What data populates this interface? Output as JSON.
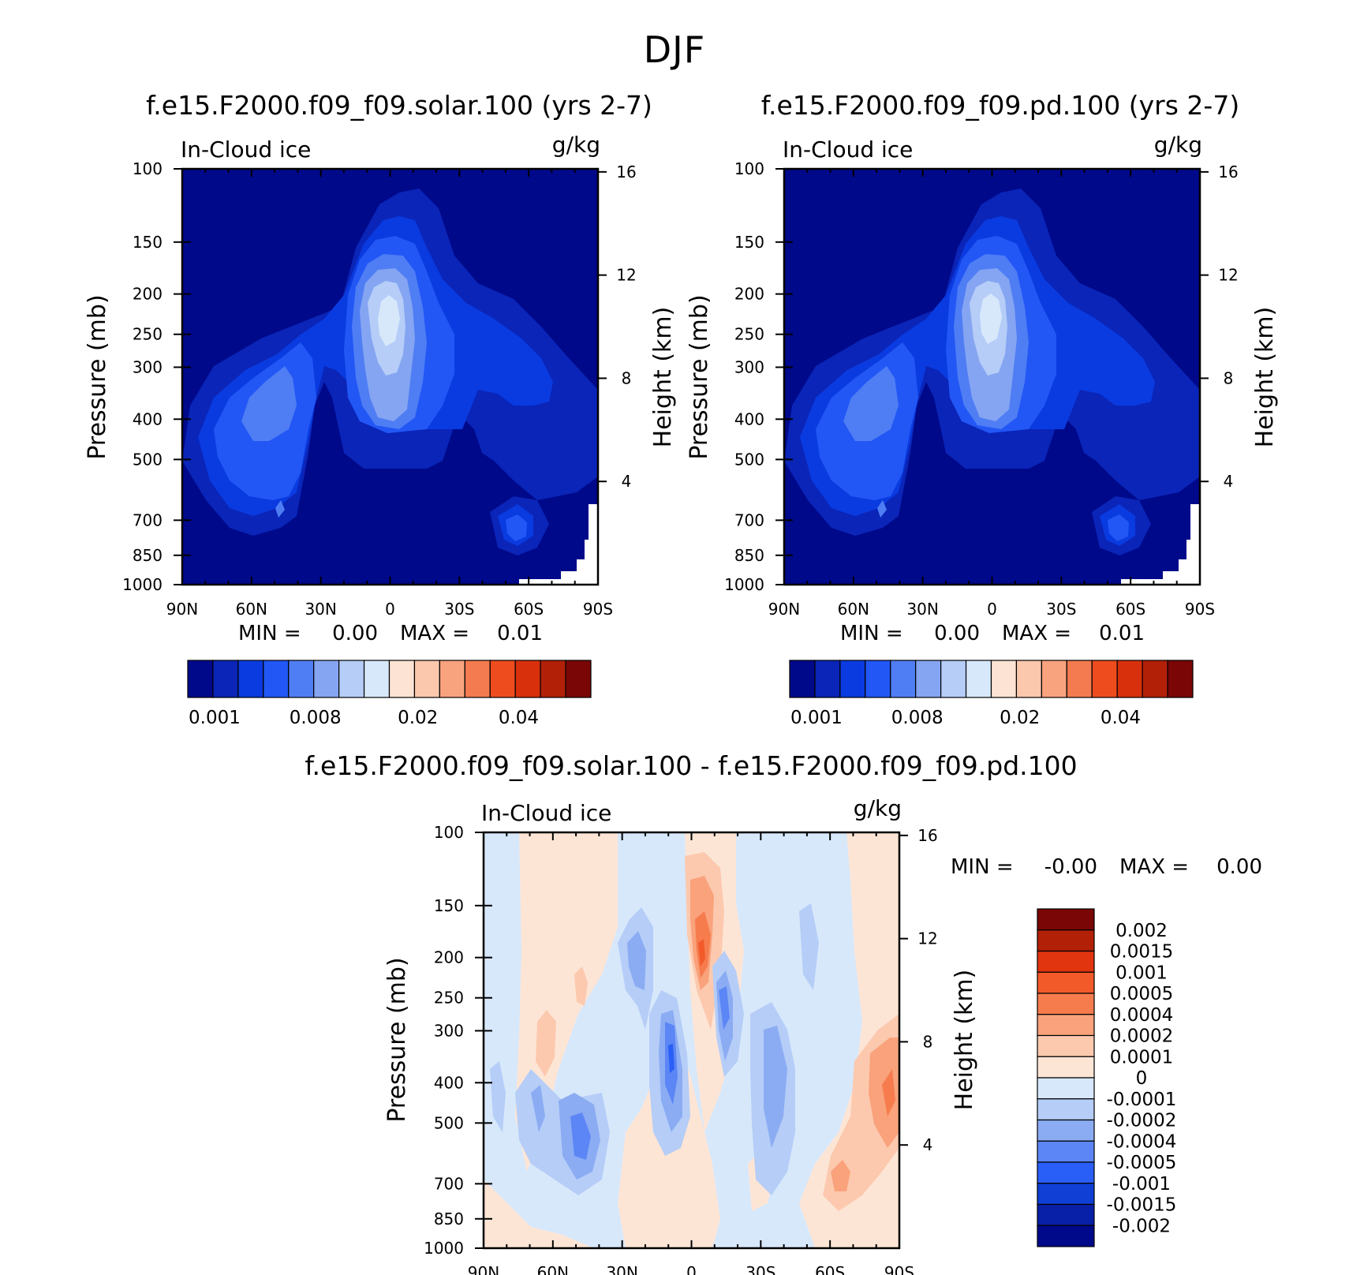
{
  "page": {
    "title": "DJF"
  },
  "axes_common": {
    "ylabel": "Pressure (mb)",
    "y2label": "Height (km)",
    "pressure_ticks": [
      100,
      150,
      200,
      250,
      300,
      400,
      500,
      700,
      850,
      1000
    ],
    "height_ticks": [
      16,
      12,
      8,
      4
    ],
    "lat_tick_labels": [
      "90N",
      "60N",
      "30N",
      "0",
      "30S",
      "60S",
      "90S"
    ],
    "lat_tick_values": [
      90,
      60,
      30,
      0,
      -30,
      -60,
      -90
    ]
  },
  "panels": [
    {
      "id": "solar",
      "title": "f.e15.F2000.f09_f09.solar.100 (yrs 2-7)",
      "left_label": "In-Cloud ice",
      "units": "g/kg",
      "min_label": "MIN =",
      "min_value": "0.00",
      "max_label": "MAX =",
      "max_value": "0.01",
      "colorbar_labels": [
        "0.001",
        "0.008",
        "0.02",
        "0.04"
      ]
    },
    {
      "id": "pd",
      "title": "f.e15.F2000.f09_f09.pd.100 (yrs 2-7)",
      "left_label": "In-Cloud ice",
      "units": "g/kg",
      "min_label": "MIN =",
      "min_value": "0.00",
      "max_label": "MAX =",
      "max_value": "0.01",
      "colorbar_labels": [
        "0.001",
        "0.008",
        "0.02",
        "0.04"
      ]
    },
    {
      "id": "diff",
      "title": "f.e15.F2000.f09_f09.solar.100 - f.e15.F2000.f09_f09.pd.100",
      "left_label": "In-Cloud ice",
      "units": "g/kg",
      "min_label": "MIN =",
      "min_value": "-0.00",
      "max_label": "MAX =",
      "max_value": "0.00",
      "colorbar_labels": [
        "0.002",
        "0.0015",
        "0.001",
        "0.0005",
        "0.0004",
        "0.0002",
        "0.0001",
        "0",
        "-0.0001",
        "-0.0002",
        "-0.0004",
        "-0.0005",
        "-0.001",
        "-0.0015",
        "-0.002"
      ]
    }
  ],
  "colors": {
    "abs_palette": [
      "#00098a",
      "#0a25b8",
      "#0a3be0",
      "#2257f5",
      "#4f7df4",
      "#85a5f2",
      "#b5cdf7",
      "#d7e8fb",
      "#fde3d3",
      "#fbc7ad",
      "#f8a37e",
      "#f47a4f",
      "#ee4c1f",
      "#d8300d",
      "#b32008",
      "#7a0606"
    ],
    "diff_palette": [
      "#7a0606",
      "#b32008",
      "#e0350f",
      "#f25a2a",
      "#f67c4e",
      "#f9a27b",
      "#fcc9ae",
      "#fde5d6",
      "#d7e8fb",
      "#b5cdf7",
      "#8bacf3",
      "#5c86f5",
      "#2a5ff7",
      "#0f3fd4",
      "#0820a8",
      "#00098a"
    ]
  },
  "chart_data": [
    {
      "type": "heatmap",
      "title": "f.e15.F2000.f09_f09.solar.100 (yrs 2-7)",
      "variable": "In-Cloud ice",
      "units": "g/kg",
      "xlabel": "",
      "ylabel": "Pressure (mb)",
      "y2label": "Height (km)",
      "xlim": [
        90,
        -90
      ],
      "ylim_pressure": [
        1000,
        100
      ],
      "y_scale": "log",
      "contour_levels": [
        0.001,
        0.002,
        0.004,
        0.006,
        0.008,
        0.01,
        0.012,
        0.015,
        0.02,
        0.025,
        0.03,
        0.035,
        0.04,
        0.045,
        0.05
      ],
      "min": 0.0,
      "max": 0.01,
      "features": [
        {
          "lat": 3,
          "pressure": 270,
          "value": 0.01,
          "desc": "tropical upper-tropospheric maximum"
        },
        {
          "lat": 35,
          "pressure": 420,
          "value": 0.006,
          "desc": "NH midlatitude maximum"
        },
        {
          "lat": -50,
          "pressure": 780,
          "value": 0.006,
          "desc": "SH low-level maximum"
        }
      ]
    },
    {
      "type": "heatmap",
      "title": "f.e15.F2000.f09_f09.pd.100 (yrs 2-7)",
      "variable": "In-Cloud ice",
      "units": "g/kg",
      "xlabel": "",
      "ylabel": "Pressure (mb)",
      "y2label": "Height (km)",
      "xlim": [
        90,
        -90
      ],
      "ylim_pressure": [
        1000,
        100
      ],
      "y_scale": "log",
      "contour_levels": [
        0.001,
        0.002,
        0.004,
        0.006,
        0.008,
        0.01,
        0.012,
        0.015,
        0.02,
        0.025,
        0.03,
        0.035,
        0.04,
        0.045,
        0.05
      ],
      "min": 0.0,
      "max": 0.01,
      "features": [
        {
          "lat": 3,
          "pressure": 270,
          "value": 0.01,
          "desc": "tropical upper-tropospheric maximum"
        },
        {
          "lat": 35,
          "pressure": 420,
          "value": 0.006,
          "desc": "NH midlatitude maximum"
        },
        {
          "lat": -50,
          "pressure": 780,
          "value": 0.006,
          "desc": "SH low-level maximum"
        }
      ]
    },
    {
      "type": "heatmap",
      "title": "f.e15.F2000.f09_f09.solar.100 - f.e15.F2000.f09_f09.pd.100",
      "variable": "In-Cloud ice",
      "units": "g/kg",
      "xlabel": "",
      "ylabel": "Pressure (mb)",
      "y2label": "Height (km)",
      "xlim": [
        90,
        -90
      ],
      "ylim_pressure": [
        1000,
        100
      ],
      "y_scale": "log",
      "contour_levels": [
        -0.002,
        -0.0015,
        -0.001,
        -0.0005,
        -0.0004,
        -0.0002,
        -0.0001,
        0,
        0.0001,
        0.0002,
        0.0004,
        0.0005,
        0.001,
        0.0015,
        0.002
      ],
      "min": -0.0,
      "max": 0.0,
      "features": [
        {
          "lat": -7,
          "pressure": 205,
          "value": 0.001,
          "desc": "positive anomaly just south of equator, upper troposphere"
        },
        {
          "lat": 0,
          "pressure": 350,
          "value": -0.0005,
          "desc": "negative anomaly at equator"
        },
        {
          "lat": -20,
          "pressure": 250,
          "value": -0.0004,
          "desc": "negative anomaly near 20S"
        },
        {
          "lat": -80,
          "pressure": 450,
          "value": 0.0004,
          "desc": "positive anomaly near 80S"
        },
        {
          "lat": 40,
          "pressure": 600,
          "value": -0.0004,
          "desc": "negative anomaly near 40N lower troposphere"
        }
      ]
    }
  ]
}
